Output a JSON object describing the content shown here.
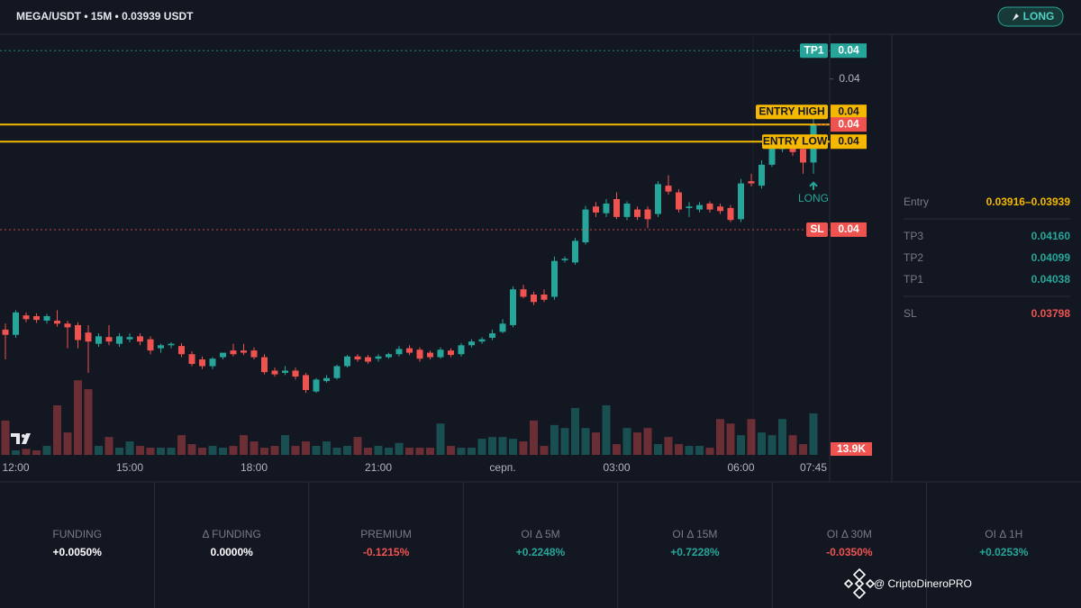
{
  "header": {
    "title": "MEGA/USDT • 15M • 0.03939 USDT",
    "button": "LONG"
  },
  "chart_data": {
    "type": "candlestick",
    "categories": [
      null,
      "12:00",
      null,
      null,
      null,
      null,
      null,
      null,
      null,
      null,
      null,
      null,
      "15:00",
      null,
      null,
      null,
      null,
      null,
      null,
      null,
      null,
      null,
      null,
      null,
      "18:00",
      null,
      null,
      null,
      null,
      null,
      null,
      null,
      null,
      null,
      null,
      null,
      "21:00",
      null,
      null,
      null,
      null,
      null,
      null,
      null,
      null,
      null,
      null,
      null,
      "серп.",
      null,
      null,
      null,
      null,
      null,
      null,
      null,
      null,
      null,
      null,
      "03:00",
      null,
      null,
      null,
      null,
      null,
      null,
      null,
      null,
      null,
      null,
      null,
      "06:00",
      null,
      null,
      null,
      null,
      null,
      null,
      "07:45"
    ],
    "open": [
      0.03664,
      0.03657,
      0.03683,
      0.03682,
      0.03676,
      0.03676,
      0.03672,
      0.0367,
      0.0366,
      0.03645,
      0.03654,
      0.03645,
      0.03651,
      0.03655,
      0.03651,
      0.03639,
      0.03643,
      0.03642,
      0.03631,
      0.03624,
      0.03615,
      0.03627,
      0.03636,
      0.03636,
      0.03636,
      0.03627,
      0.03609,
      0.03606,
      0.03609,
      0.03603,
      0.03581,
      0.03595,
      0.03599,
      0.03615,
      0.03628,
      0.03627,
      0.03625,
      0.03627,
      0.03631,
      0.03639,
      0.03637,
      0.03633,
      0.03627,
      0.03636,
      0.03631,
      0.03643,
      0.03648,
      0.03653,
      0.03661,
      0.0367,
      0.03718,
      0.03711,
      0.03711,
      0.03708,
      0.03757,
      0.03754,
      0.03781,
      0.03829,
      0.0382,
      0.03839,
      0.03815,
      0.03825,
      0.03825,
      0.03819,
      0.03857,
      0.03848,
      0.03827,
      0.03825,
      0.03833,
      0.03829,
      0.03827,
      0.03812,
      0.03863,
      0.03857,
      0.03885,
      0.03906,
      0.03912,
      0.03906,
      0.03888
    ],
    "high": [
      0.03672,
      0.0369,
      0.03687,
      0.03686,
      0.03685,
      0.0369,
      0.03676,
      0.03674,
      0.0367,
      0.03659,
      0.0367,
      0.03659,
      0.03659,
      0.03659,
      0.03655,
      0.03645,
      0.03647,
      0.03646,
      0.03635,
      0.03628,
      0.03627,
      0.03633,
      0.03645,
      0.03645,
      0.0364,
      0.03631,
      0.03613,
      0.03615,
      0.03613,
      0.03606,
      0.03599,
      0.03603,
      0.03617,
      0.0363,
      0.03631,
      0.0363,
      0.03631,
      0.03633,
      0.03642,
      0.03643,
      0.0364,
      0.03636,
      0.0364,
      0.03639,
      0.03646,
      0.03651,
      0.03654,
      0.03664,
      0.03678,
      0.03722,
      0.03724,
      0.03715,
      0.03718,
      0.03762,
      0.03762,
      0.03787,
      0.0383,
      0.03835,
      0.03839,
      0.03848,
      0.03836,
      0.03829,
      0.03829,
      0.03863,
      0.03871,
      0.03852,
      0.03835,
      0.03835,
      0.03836,
      0.03833,
      0.03831,
      0.03866,
      0.03873,
      0.03891,
      0.03918,
      0.03916,
      0.03916,
      0.0391,
      0.0395
    ],
    "low": [
      0.03624,
      0.03653,
      0.03674,
      0.03673,
      0.03672,
      0.03668,
      0.03639,
      0.03639,
      0.03606,
      0.03641,
      0.03643,
      0.03641,
      0.03647,
      0.03643,
      0.03631,
      0.03633,
      0.03639,
      0.03627,
      0.03615,
      0.03611,
      0.03611,
      0.03624,
      0.03628,
      0.0363,
      0.03624,
      0.03604,
      0.03601,
      0.03603,
      0.03597,
      0.03579,
      0.03579,
      0.03593,
      0.03597,
      0.03613,
      0.03621,
      0.03618,
      0.03621,
      0.03625,
      0.03628,
      0.0363,
      0.03621,
      0.03624,
      0.03625,
      0.03627,
      0.03628,
      0.0364,
      0.03645,
      0.0365,
      0.03659,
      0.03667,
      0.03706,
      0.03697,
      0.03701,
      0.03704,
      0.03754,
      0.03751,
      0.03778,
      0.03815,
      0.03815,
      0.03812,
      0.03811,
      0.03811,
      0.038,
      0.03815,
      0.03845,
      0.03821,
      0.03815,
      0.03821,
      0.03821,
      0.03819,
      0.03808,
      0.03808,
      0.03856,
      0.03853,
      0.03882,
      0.03902,
      0.03897,
      0.03873,
      0.03873
    ],
    "close": [
      0.03657,
      0.03687,
      0.03678,
      0.03677,
      0.03682,
      0.03672,
      0.03667,
      0.0365,
      0.03648,
      0.03655,
      0.03648,
      0.03655,
      0.03654,
      0.03648,
      0.03636,
      0.03643,
      0.03645,
      0.03631,
      0.03618,
      0.03615,
      0.03625,
      0.03633,
      0.03631,
      0.03633,
      0.03627,
      0.03607,
      0.03604,
      0.03609,
      0.03601,
      0.03583,
      0.03597,
      0.03599,
      0.03615,
      0.03628,
      0.03624,
      0.03621,
      0.03628,
      0.03631,
      0.03638,
      0.03633,
      0.03625,
      0.03627,
      0.03637,
      0.0363,
      0.03643,
      0.03648,
      0.03651,
      0.03659,
      0.03672,
      0.03718,
      0.03708,
      0.03701,
      0.03704,
      0.03756,
      0.03759,
      0.03783,
      0.03825,
      0.03821,
      0.03833,
      0.03815,
      0.03833,
      0.03815,
      0.03812,
      0.03859,
      0.03849,
      0.03825,
      0.03829,
      0.03831,
      0.03825,
      0.03823,
      0.03811,
      0.0386,
      0.0386,
      0.03885,
      0.03912,
      0.03912,
      0.03902,
      0.03888,
      0.03939
    ],
    "volume": [
      11500,
      1500,
      2000,
      1500,
      3000,
      16600,
      7500,
      25000,
      22000,
      3000,
      6000,
      2400,
      4500,
      3000,
      2400,
      2400,
      2400,
      6600,
      3600,
      2400,
      3000,
      2400,
      3000,
      6600,
      4500,
      2400,
      3000,
      6600,
      3000,
      4500,
      3000,
      4500,
      2400,
      3000,
      6000,
      2400,
      3000,
      2400,
      4000,
      2400,
      2400,
      2400,
      10500,
      3000,
      2400,
      2400,
      5400,
      6000,
      6000,
      5400,
      4500,
      11500,
      3000,
      10000,
      9000,
      15700,
      9000,
      7500,
      16600,
      3600,
      9000,
      7500,
      9000,
      3600,
      6000,
      3600,
      3000,
      3000,
      2400,
      12000,
      10500,
      6600,
      12000,
      7500,
      6600,
      12000,
      6600,
      3600,
      13900
    ],
    "last_volume_label": "13.9K",
    "volume_lim": [
      0,
      35000
    ],
    "up_color": "#26a69a",
    "down_color": "#ef5350",
    "ylim": [
      0.0349,
      0.0406
    ],
    "yticks": [
      0.04
    ],
    "levels": [
      {
        "name": "TP1",
        "value": 0.04038,
        "label": "0.04",
        "color": "#26a69a",
        "style": "dotted"
      },
      {
        "name": "ENTRY HIGH",
        "value": 0.03939,
        "label": "0.04",
        "color": "#f5b800",
        "style": "solid"
      },
      {
        "name": "ENTRY LOW",
        "value": 0.03916,
        "label": "0.04",
        "color": "#f5b800",
        "style": "solid"
      },
      {
        "name": "SL",
        "value": 0.03798,
        "label": "0.04",
        "color": "#ef5350",
        "style": "dotted"
      }
    ],
    "last_price": {
      "value": 0.03939,
      "label": "0.04"
    },
    "annotation": "LONG"
  },
  "side_panel": {
    "rows": [
      {
        "label": "Entry",
        "value": "0.03916–0.03939",
        "color": "#f5b800"
      },
      {
        "label": "TP3",
        "value": "0.04160",
        "color": "#26a69a"
      },
      {
        "label": "TP2",
        "value": "0.04099",
        "color": "#26a69a"
      },
      {
        "label": "TP1",
        "value": "0.04038",
        "color": "#26a69a"
      },
      {
        "label": "SL",
        "value": "0.03798",
        "color": "#ef5350"
      }
    ]
  },
  "stats": [
    {
      "label": "FUNDING",
      "value": "+0.0050%",
      "color": "#ffffff"
    },
    {
      "label": "Δ FUNDING",
      "value": "0.0000%",
      "color": "#ffffff"
    },
    {
      "label": "PREMIUM",
      "value": "-0.1215%",
      "color": "#ef5350"
    },
    {
      "label": "OI Δ 5M",
      "value": "+0.2248%",
      "color": "#26a69a"
    },
    {
      "label": "OI Δ 15M",
      "value": "+0.7228%",
      "color": "#26a69a"
    },
    {
      "label": "OI Δ 30M",
      "value": "-0.0350%",
      "color": "#ef5350"
    },
    {
      "label": "OI Δ 1H",
      "value": "+0.0253%",
      "color": "#26a69a"
    }
  ],
  "watermark": "@ CriptoDineroPRO"
}
